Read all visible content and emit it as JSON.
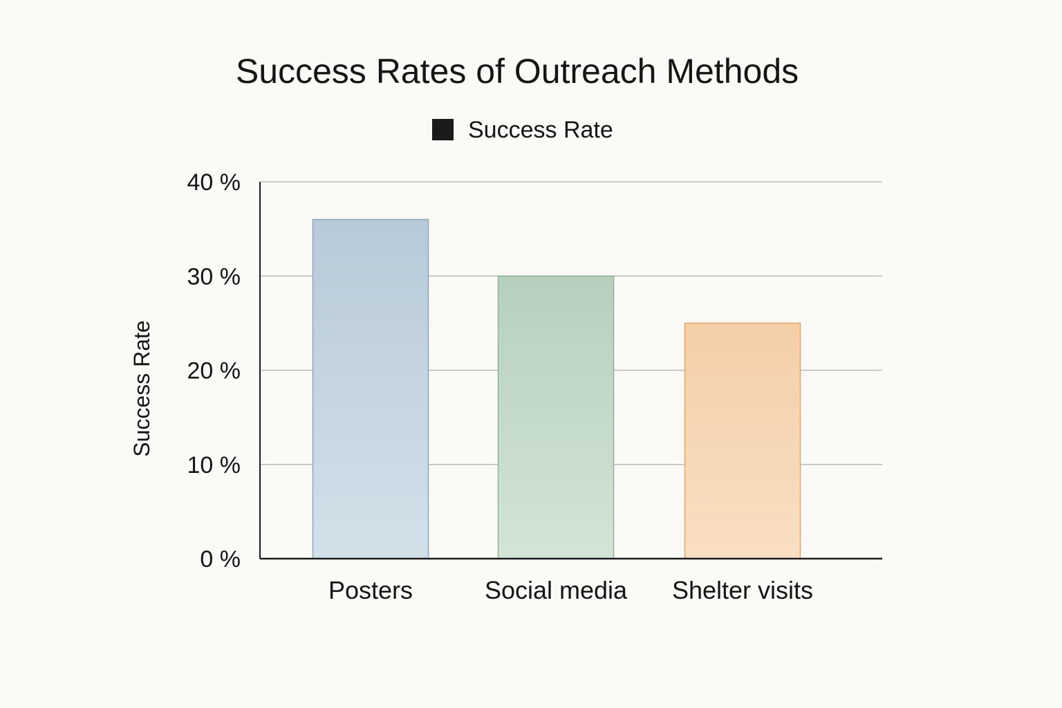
{
  "chart_data": {
    "type": "bar",
    "title": "Success Rates of Outreach Methods",
    "legend": {
      "placement": "top-center",
      "entries": [
        {
          "label": "Success Rate",
          "color": "#1a1a1a"
        }
      ]
    },
    "categories": [
      "Posters",
      "Social media",
      "Shelter visits"
    ],
    "series": [
      {
        "name": "Success Rate",
        "values": [
          36,
          30,
          25
        ]
      }
    ],
    "bar_colors": [
      {
        "fill_top": "#b8cad8",
        "fill_bottom": "#d2e1e9",
        "stroke": "#8fa6b8"
      },
      {
        "fill_top": "#b6d0bd",
        "fill_bottom": "#d3e5d6",
        "stroke": "#8fb196"
      },
      {
        "fill_top": "#f4cfa8",
        "fill_bottom": "#f9dfc2",
        "stroke": "#e2a46a"
      }
    ],
    "xlabel": "",
    "ylabel": "Success Rate",
    "ylim": [
      0,
      40
    ],
    "yticks": [
      0,
      10,
      20,
      30,
      40
    ],
    "ytick_labels": [
      "0 %",
      "10 %",
      "20 %",
      "30 %",
      "40 %"
    ],
    "grid": true
  }
}
